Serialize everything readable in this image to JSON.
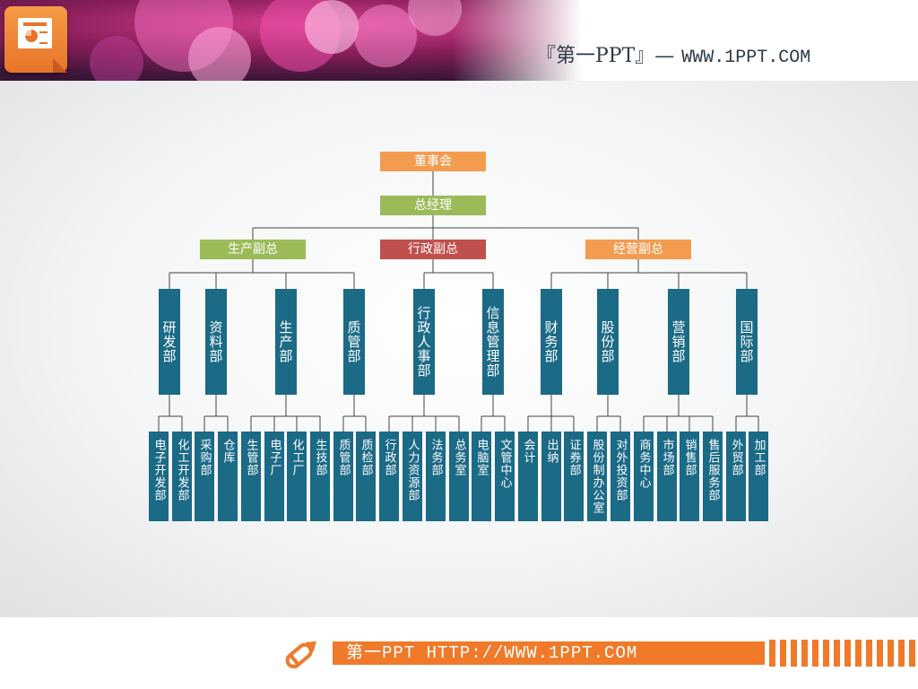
{
  "header": {
    "brand": "『第一PPT』—",
    "url": "WWW.1PPT.COM"
  },
  "colors": {
    "orange": "#f39c50",
    "green": "#9bbb59",
    "red": "#c0504d",
    "teal": "#1b6a86"
  },
  "chart": {
    "board": "董事会",
    "gm": "总经理",
    "vps": [
      "生产副总",
      "行政副总",
      "经营副总"
    ],
    "departments": [
      "研发部",
      "资料部",
      "生产部",
      "质管部",
      "行政人事部",
      "信息管理部",
      "财务部",
      "股份部",
      "营销部",
      "国际部"
    ],
    "subunits": [
      "电子开发部",
      "化工开发部",
      "采购部",
      "仓库",
      "生管部",
      "电子厂",
      "化工厂",
      "生技部",
      "质管部",
      "质检部",
      "行政部",
      "人力资源部",
      "法务部",
      "总务室",
      "电脑室",
      "文管中心",
      "会计",
      "出纳",
      "证券部",
      "股份制办公室",
      "对外投资部",
      "商务中心",
      "市场部",
      "销售部",
      "售后服务部",
      "外贸部",
      "加工部"
    ]
  },
  "footer": {
    "text": "第一PPT HTTP://WWW.1PPT.COM"
  }
}
